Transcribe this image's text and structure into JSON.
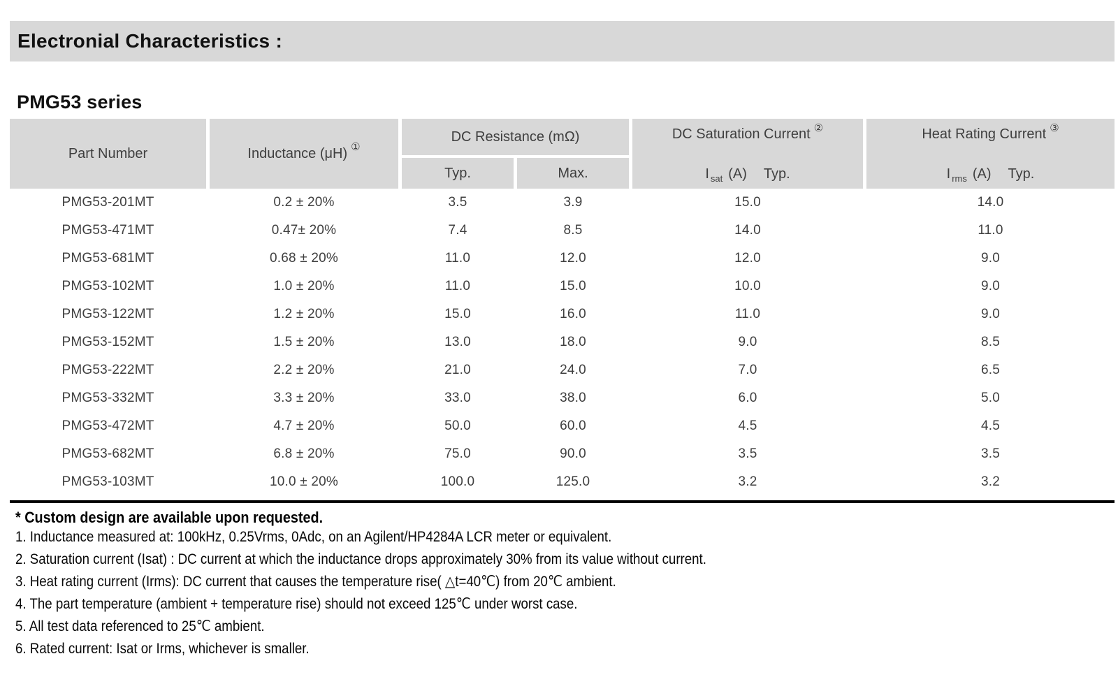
{
  "page": {
    "section_title": "Electronial Characteristics :",
    "series_title": "PMG53 series"
  },
  "table": {
    "header": {
      "part_number": "Part Number",
      "inductance_label": "Inductance (μH)",
      "inductance_sup": "①",
      "dc_resistance_label": "DC Resistance (mΩ)",
      "typ": "Typ.",
      "max": "Max.",
      "saturation_label": "DC Saturation Current",
      "saturation_sup": "②",
      "saturation_symbol": "I",
      "saturation_sub": "sat",
      "saturation_unit": "(A)",
      "saturation_typ": "Typ.",
      "heat_label": "Heat Rating Current",
      "heat_sup": "③",
      "heat_symbol": "I",
      "heat_sub": "rms",
      "heat_unit": "(A)",
      "heat_typ": "Typ."
    },
    "rows": [
      [
        "PMG53-201MT",
        "0.2 ± 20%",
        "3.5",
        "3.9",
        "15.0",
        "14.0"
      ],
      [
        "PMG53-471MT",
        "0.47± 20%",
        "7.4",
        "8.5",
        "14.0",
        "11.0"
      ],
      [
        "PMG53-681MT",
        "0.68 ± 20%",
        "11.0",
        "12.0",
        "12.0",
        "9.0"
      ],
      [
        "PMG53-102MT",
        "1.0 ± 20%",
        "11.0",
        "15.0",
        "10.0",
        "9.0"
      ],
      [
        "PMG53-122MT",
        "1.2 ± 20%",
        "15.0",
        "16.0",
        "11.0",
        "9.0"
      ],
      [
        "PMG53-152MT",
        "1.5 ± 20%",
        "13.0",
        "18.0",
        "9.0",
        "8.5"
      ],
      [
        "PMG53-222MT",
        "2.2 ± 20%",
        "21.0",
        "24.0",
        "7.0",
        "6.5"
      ],
      [
        "PMG53-332MT",
        "3.3 ± 20%",
        "33.0",
        "38.0",
        "6.0",
        "5.0"
      ],
      [
        "PMG53-472MT",
        "4.7 ± 20%",
        "50.0",
        "60.0",
        "4.5",
        "4.5"
      ],
      [
        "PMG53-682MT",
        "6.8 ± 20%",
        "75.0",
        "90.0",
        "3.5",
        "3.5"
      ],
      [
        "PMG53-103MT",
        "10.0 ± 20%",
        "100.0",
        "125.0",
        "3.2",
        "3.2"
      ]
    ]
  },
  "notes": {
    "star": "* Custom design are available upon requested.",
    "items": [
      "1. Inductance measured at: 100kHz, 0.25Vrms, 0Adc, on an Agilent/HP4284A LCR meter or equivalent.",
      "2. Saturation current (Isat) : DC current at which the inductance drops approximately 30% from its value without current.",
      "3. Heat rating current (Irms): DC current that causes the temperature rise( △t=40℃) from 20℃ ambient.",
      "4. The part temperature (ambient + temperature rise) should not exceed 125℃ under worst case.",
      "5. All test data referenced to 25℃ ambient.",
      "6. Rated current: Isat or Irms, whichever is smaller."
    ]
  },
  "colors": {
    "header_bg": "#d8d8d8",
    "table_text": "#3f3f3f",
    "rule": "#000000"
  }
}
